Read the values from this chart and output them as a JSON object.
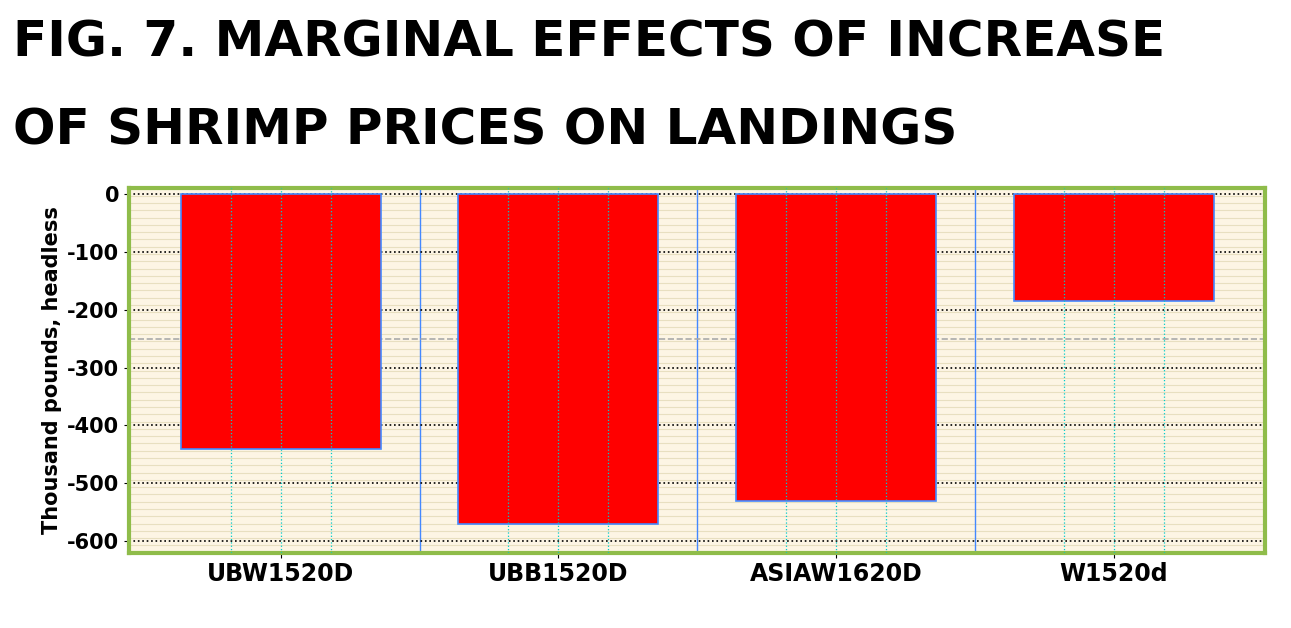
{
  "title_line1": "FIG. 7. MARGINAL EFFECTS OF INCREASE",
  "title_line2": "OF SHRIMP PRICES ON LANDINGS",
  "categories": [
    "UBW1520D",
    "UBB1520D",
    "ASIAW1620D",
    "W1520d"
  ],
  "values": [
    -440,
    -570,
    -530,
    -185
  ],
  "bar_color": "#ff0000",
  "background_color": "#ffffff",
  "plot_bg_color": "#fdf5e4",
  "plot_stripe_color": "#e8dfc0",
  "ylabel": "Thousand pounds, headless",
  "ylim": [
    -620,
    10
  ],
  "yticks": [
    0,
    -100,
    -200,
    -300,
    -400,
    -500,
    -600
  ],
  "title_fontsize": 36,
  "axis_label_fontsize": 15,
  "tick_fontsize": 15,
  "xlabel_fontsize": 17,
  "border_color": "#8fbc4a",
  "grid_color_black_dotted": "#000000",
  "grid_color_cyan_dotted": "#00cccc",
  "grid_color_dashed_gray": "#aaaaaa",
  "bar_edge_color_blue": "#4488ff",
  "title_color": "#000000",
  "bar_width": 0.72
}
